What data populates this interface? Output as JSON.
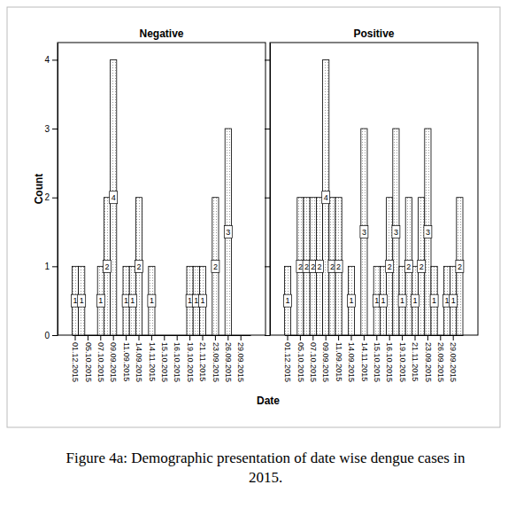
{
  "chart_data": [
    {
      "type": "bar",
      "title": "Negative",
      "categories": [
        "01.12.2015",
        null,
        "05.10.2015",
        null,
        "07.10.2015",
        null,
        "09.09.2015",
        null,
        "11.09.2015",
        null,
        "14.09.2015",
        null,
        "14.11.2015",
        null,
        "15.10.2015",
        null,
        "16.10.2015",
        null,
        "19.10.2015",
        null,
        "21.11.2015",
        null,
        "23.09.2015",
        null,
        "26.09.2015",
        null,
        "29.09.2015",
        null
      ],
      "values": [
        1,
        1,
        null,
        null,
        1,
        2,
        4,
        null,
        1,
        1,
        2,
        null,
        1,
        null,
        null,
        null,
        null,
        null,
        1,
        1,
        1,
        null,
        2,
        null,
        3,
        null,
        null,
        null
      ],
      "color": "#ffffff",
      "ylim": [
        0,
        4.25
      ],
      "yticks": [
        0,
        1,
        2,
        3,
        4
      ],
      "data_labels": true
    },
    {
      "type": "bar",
      "title": "Positive",
      "categories": [
        "01.12.2015",
        null,
        "05.10.2015",
        null,
        "07.10.2015",
        null,
        "09.09.2015",
        null,
        "11.09.2015",
        null,
        "14.09.2015",
        null,
        "14.11.2015",
        null,
        "15.10.2015",
        null,
        "16.10.2015",
        null,
        "19.10.2015",
        null,
        "21.11.2015",
        null,
        "23.09.2015",
        null,
        "26.09.2015",
        null,
        "29.09.2015",
        null
      ],
      "values": [
        1,
        null,
        2,
        2,
        2,
        2,
        4,
        2,
        2,
        null,
        1,
        null,
        3,
        null,
        1,
        1,
        2,
        3,
        1,
        2,
        1,
        2,
        3,
        1,
        null,
        1,
        1,
        2
      ],
      "color": "#ffffff",
      "ylim": [
        0,
        4.25
      ],
      "yticks": [
        0,
        1,
        2,
        3,
        4
      ],
      "data_labels": true,
      "tick_labels": "x"
    }
  ],
  "x_label": "Date",
  "y_label": "Count",
  "caption": "Figure 4a: Demographic presentation of date wise dengue cases in 2015."
}
